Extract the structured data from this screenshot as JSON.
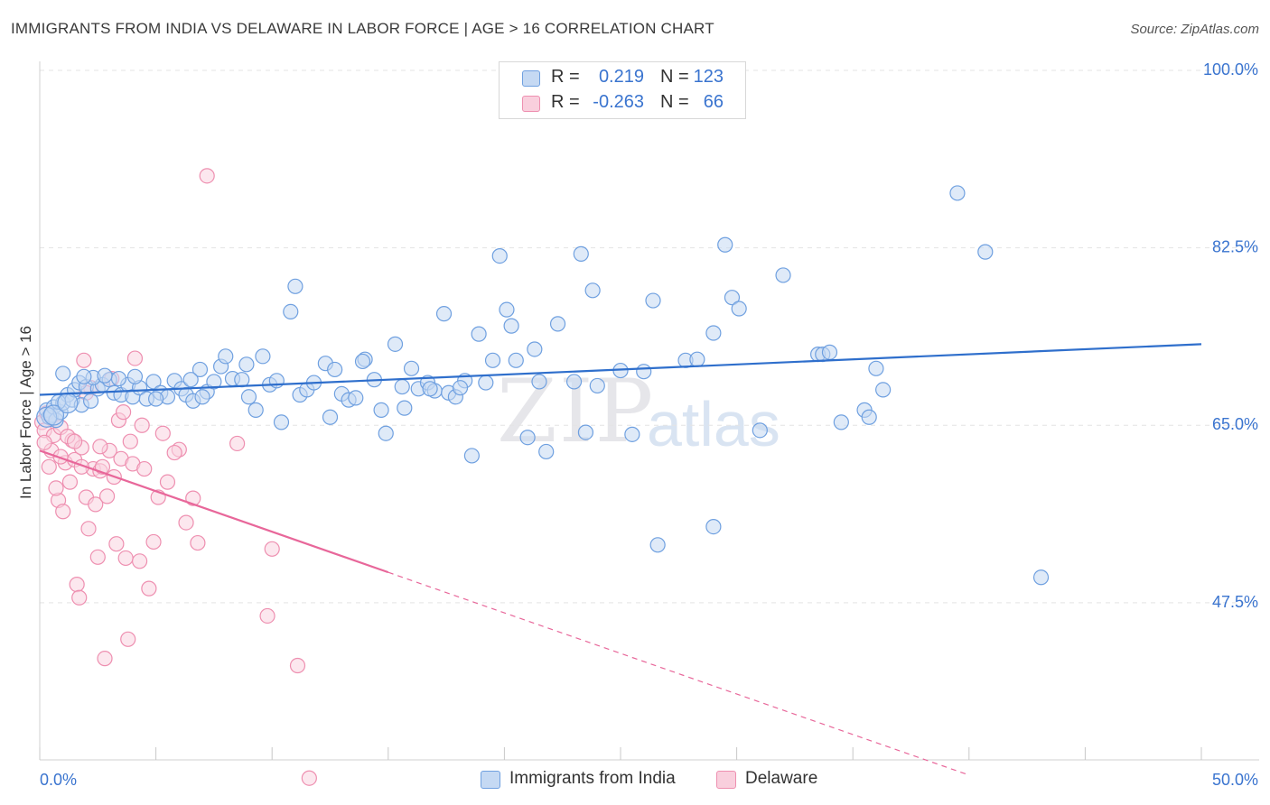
{
  "header": {
    "title": "IMMIGRANTS FROM INDIA VS DELAWARE IN LABOR FORCE | AGE > 16 CORRELATION CHART",
    "source": "Source: ZipAtlas.com"
  },
  "watermark": {
    "zip": "ZIP",
    "atlas": "atlas"
  },
  "legend": {
    "rows": [
      {
        "r_label": "R =",
        "r_value": "0.219",
        "n_label": "N =",
        "n_value": "123",
        "color": "#6fa0e0",
        "fill": "#c5d9f3"
      },
      {
        "r_label": "R =",
        "r_value": "-0.263",
        "n_label": "N =",
        "n_value": "66",
        "color": "#ee8fb0",
        "fill": "#f9cfdd"
      }
    ]
  },
  "bottom_legend": {
    "india": "Immigrants from India",
    "delaware": "Delaware"
  },
  "colors": {
    "blue_stroke": "#6fa0e0",
    "blue_fill": "#c5d9f3",
    "blue_line": "#2f6fcc",
    "pink_stroke": "#ee8fb0",
    "pink_fill": "#f9d3e0",
    "pink_line": "#e8679a",
    "tick_label": "#3a74cf"
  },
  "chart_data": {
    "type": "scatter",
    "title": "IMMIGRANTS FROM INDIA VS DELAWARE IN LABOR FORCE | AGE > 16 CORRELATION CHART",
    "xlabel": "",
    "ylabel": "In Labor Force | Age > 16",
    "xlim": [
      0,
      50
    ],
    "ylim": [
      32,
      100
    ],
    "x_tick_labels": [
      "0.0%",
      "50.0%"
    ],
    "y_ticks": [
      47.5,
      65.0,
      82.5,
      100.0
    ],
    "y_tick_labels": [
      "47.5%",
      "65.0%",
      "82.5%",
      "100.0%"
    ],
    "grid": "horizontal dashed",
    "legend_position": "top-center",
    "series": [
      {
        "name": "Immigrants from India",
        "trend": {
          "x": [
            0,
            50
          ],
          "y": [
            68.0,
            73.0
          ],
          "style": "solid"
        },
        "points": [
          [
            0.3,
            66.5
          ],
          [
            0.4,
            65.8
          ],
          [
            0.5,
            66.0
          ],
          [
            0.6,
            66.8
          ],
          [
            0.7,
            65.5
          ],
          [
            0.9,
            66.3
          ],
          [
            1.0,
            67.2
          ],
          [
            1.2,
            68.0
          ],
          [
            1.4,
            67.5
          ],
          [
            1.5,
            68.5
          ],
          [
            1.7,
            69.2
          ],
          [
            1.8,
            67.0
          ],
          [
            2.0,
            68.8
          ],
          [
            2.2,
            67.4
          ],
          [
            2.5,
            68.6
          ],
          [
            2.7,
            69.0
          ],
          [
            3.0,
            69.5
          ],
          [
            3.2,
            68.2
          ],
          [
            3.5,
            68.0
          ],
          [
            3.8,
            69.0
          ],
          [
            4.0,
            67.8
          ],
          [
            4.3,
            68.7
          ],
          [
            4.6,
            67.6
          ],
          [
            4.9,
            69.3
          ],
          [
            5.2,
            68.2
          ],
          [
            5.5,
            67.8
          ],
          [
            5.8,
            69.4
          ],
          [
            6.1,
            68.6
          ],
          [
            6.3,
            68.0
          ],
          [
            6.6,
            67.4
          ],
          [
            6.9,
            70.5
          ],
          [
            7.2,
            68.3
          ],
          [
            7.5,
            69.3
          ],
          [
            7.8,
            70.8
          ],
          [
            8.0,
            71.8
          ],
          [
            8.3,
            69.6
          ],
          [
            8.7,
            69.5
          ],
          [
            9.0,
            67.8
          ],
          [
            9.3,
            66.5
          ],
          [
            9.6,
            71.8
          ],
          [
            9.9,
            69.0
          ],
          [
            10.2,
            69.4
          ],
          [
            10.4,
            65.3
          ],
          [
            10.8,
            76.2
          ],
          [
            11.0,
            78.7
          ],
          [
            11.2,
            68.0
          ],
          [
            11.5,
            68.5
          ],
          [
            11.8,
            69.2
          ],
          [
            12.3,
            71.1
          ],
          [
            12.7,
            70.5
          ],
          [
            13.0,
            68.1
          ],
          [
            13.3,
            67.5
          ],
          [
            13.6,
            67.7
          ],
          [
            14.0,
            71.5
          ],
          [
            14.4,
            69.5
          ],
          [
            14.7,
            66.5
          ],
          [
            14.9,
            64.2
          ],
          [
            15.3,
            73.0
          ],
          [
            15.6,
            68.8
          ],
          [
            16.0,
            70.6
          ],
          [
            16.3,
            68.6
          ],
          [
            16.7,
            69.2
          ],
          [
            17.0,
            68.4
          ],
          [
            17.4,
            76.0
          ],
          [
            17.6,
            68.2
          ],
          [
            17.9,
            67.8
          ],
          [
            18.3,
            69.4
          ],
          [
            18.6,
            62.0
          ],
          [
            18.9,
            74.0
          ],
          [
            19.2,
            69.2
          ],
          [
            19.5,
            71.4
          ],
          [
            19.8,
            81.7
          ],
          [
            20.1,
            76.4
          ],
          [
            20.3,
            74.8
          ],
          [
            20.5,
            71.4
          ],
          [
            21.0,
            63.8
          ],
          [
            21.5,
            69.3
          ],
          [
            21.8,
            62.4
          ],
          [
            22.3,
            75.0
          ],
          [
            23.0,
            69.3
          ],
          [
            23.3,
            81.9
          ],
          [
            23.8,
            78.3
          ],
          [
            23.5,
            64.3
          ],
          [
            25.0,
            70.4
          ],
          [
            25.5,
            64.1
          ],
          [
            26.0,
            70.3
          ],
          [
            26.4,
            77.3
          ],
          [
            26.6,
            53.2
          ],
          [
            27.8,
            71.4
          ],
          [
            28.3,
            71.5
          ],
          [
            29.0,
            55.0
          ],
          [
            29.0,
            74.1
          ],
          [
            29.5,
            82.8
          ],
          [
            29.8,
            77.6
          ],
          [
            30.1,
            76.5
          ],
          [
            31.0,
            64.5
          ],
          [
            32.0,
            79.8
          ],
          [
            33.5,
            72.0
          ],
          [
            33.7,
            72.0
          ],
          [
            34.0,
            72.2
          ],
          [
            34.5,
            65.3
          ],
          [
            35.5,
            66.5
          ],
          [
            35.7,
            65.8
          ],
          [
            36.0,
            70.6
          ],
          [
            36.3,
            68.5
          ],
          [
            39.5,
            87.9
          ],
          [
            40.7,
            82.1
          ],
          [
            43.1,
            50.0
          ],
          [
            1.0,
            70.1
          ],
          [
            2.3,
            69.7
          ],
          [
            5.0,
            67.6
          ],
          [
            7.0,
            67.8
          ],
          [
            12.5,
            65.8
          ],
          [
            16.8,
            68.6
          ],
          [
            21.3,
            72.5
          ],
          [
            24.0,
            68.9
          ],
          [
            1.9,
            69.8
          ],
          [
            3.4,
            69.6
          ],
          [
            4.1,
            69.8
          ],
          [
            6.5,
            69.5
          ],
          [
            8.9,
            71.0
          ],
          [
            13.9,
            71.3
          ],
          [
            15.7,
            66.7
          ],
          [
            18.1,
            68.7
          ],
          [
            0.8,
            67.3
          ],
          [
            2.8,
            69.9
          ]
        ]
      },
      {
        "name": "Delaware",
        "trend": {
          "x": [
            0,
            15,
            40
          ],
          "y": [
            62.5,
            50.5,
            30.5
          ],
          "style": "solid-then-dashed",
          "solid_until": 15
        },
        "points": [
          [
            0.1,
            65.3
          ],
          [
            0.2,
            64.5
          ],
          [
            0.3,
            66.2
          ],
          [
            0.4,
            60.9
          ],
          [
            0.5,
            62.5
          ],
          [
            0.6,
            64.0
          ],
          [
            0.8,
            57.6
          ],
          [
            0.9,
            64.8
          ],
          [
            1.0,
            56.5
          ],
          [
            1.1,
            61.3
          ],
          [
            1.3,
            59.4
          ],
          [
            1.4,
            63.5
          ],
          [
            1.5,
            61.6
          ],
          [
            1.6,
            49.3
          ],
          [
            1.7,
            48.0
          ],
          [
            1.8,
            62.8
          ],
          [
            1.9,
            71.4
          ],
          [
            2.0,
            57.9
          ],
          [
            2.1,
            54.8
          ],
          [
            2.2,
            68.7
          ],
          [
            2.3,
            60.7
          ],
          [
            2.4,
            57.2
          ],
          [
            2.5,
            52.0
          ],
          [
            2.6,
            60.5
          ],
          [
            2.7,
            60.9
          ],
          [
            2.8,
            42.0
          ],
          [
            2.9,
            58.0
          ],
          [
            3.0,
            62.5
          ],
          [
            3.2,
            59.9
          ],
          [
            3.4,
            65.5
          ],
          [
            3.5,
            61.7
          ],
          [
            3.7,
            51.9
          ],
          [
            3.8,
            43.9
          ],
          [
            3.9,
            63.4
          ],
          [
            4.0,
            61.2
          ],
          [
            4.1,
            71.6
          ],
          [
            4.3,
            51.6
          ],
          [
            4.5,
            60.7
          ],
          [
            4.7,
            48.9
          ],
          [
            4.9,
            53.5
          ],
          [
            5.1,
            57.9
          ],
          [
            5.3,
            64.2
          ],
          [
            5.5,
            59.4
          ],
          [
            6.0,
            62.6
          ],
          [
            6.3,
            55.4
          ],
          [
            6.6,
            57.8
          ],
          [
            7.2,
            89.6
          ],
          [
            8.5,
            63.2
          ],
          [
            9.8,
            46.2
          ],
          [
            10.0,
            52.8
          ],
          [
            11.1,
            41.3
          ],
          [
            11.6,
            30.2
          ],
          [
            0.2,
            63.3
          ],
          [
            0.7,
            58.8
          ],
          [
            1.2,
            63.9
          ],
          [
            1.5,
            63.4
          ],
          [
            2.0,
            68.2
          ],
          [
            2.6,
            62.9
          ],
          [
            3.1,
            69.6
          ],
          [
            3.6,
            66.3
          ],
          [
            4.4,
            65.0
          ],
          [
            5.8,
            62.3
          ],
          [
            6.8,
            53.4
          ],
          [
            0.9,
            61.9
          ],
          [
            1.8,
            60.9
          ],
          [
            3.3,
            53.3
          ]
        ]
      }
    ]
  }
}
